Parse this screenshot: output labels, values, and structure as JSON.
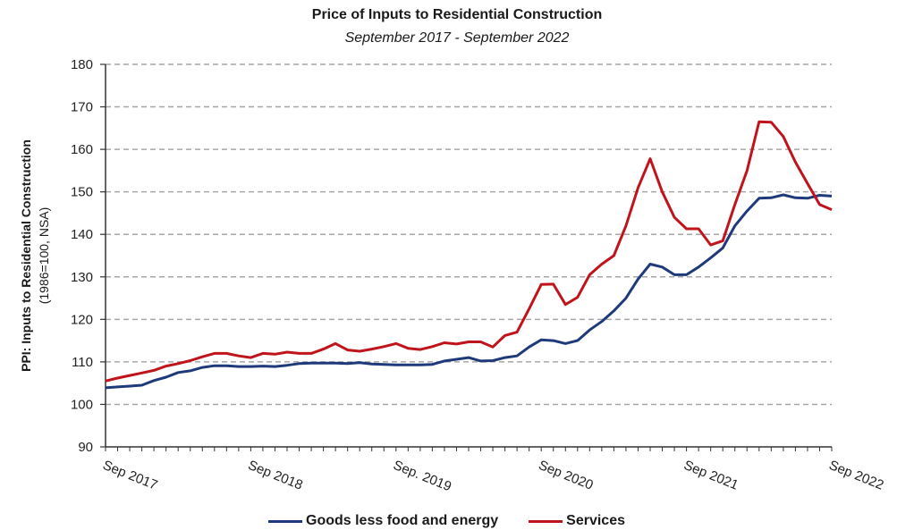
{
  "chart_data": {
    "type": "line",
    "title": "Price of Inputs to Residential Construction",
    "subtitle": "September 2017 - September 2022",
    "ylabel": "PPI: Inputs to Residential Construction",
    "ylabel_sub": "(1986=100, NSA)",
    "xlabel": "",
    "ylim": [
      90,
      180
    ],
    "yticks": [
      90,
      100,
      110,
      120,
      130,
      140,
      150,
      160,
      170,
      180
    ],
    "xtick_labels": [
      {
        "month_index": 0,
        "label": "Sep 2017"
      },
      {
        "month_index": 12,
        "label": "Sep 2018"
      },
      {
        "month_index": 24,
        "label": "Sep. 2019"
      },
      {
        "month_index": 36,
        "label": "Sep 2020"
      },
      {
        "month_index": 48,
        "label": "Sep 2021"
      },
      {
        "month_index": 60,
        "label": "Sep 2022"
      }
    ],
    "x_period": "monthly, Sep 2017 to Sep 2022",
    "grid": "horizontal dashed",
    "legend_position": "bottom",
    "series": [
      {
        "name": "Goods less food and energy",
        "color": "#1f3a7a",
        "values": [
          103.9,
          104.1,
          104.3,
          104.5,
          105.6,
          106.4,
          107.5,
          107.9,
          108.7,
          109.1,
          109.1,
          108.9,
          108.9,
          109.0,
          108.9,
          109.2,
          109.6,
          109.7,
          109.7,
          109.7,
          109.6,
          109.8,
          109.5,
          109.4,
          109.3,
          109.3,
          109.3,
          109.4,
          110.2,
          110.6,
          111.0,
          110.2,
          110.3,
          111.0,
          111.4,
          113.5,
          115.2,
          115.0,
          114.3,
          115.0,
          117.5,
          119.5,
          122.0,
          125.0,
          129.5,
          133.0,
          132.3,
          130.5,
          130.5,
          132.3,
          134.5,
          136.8,
          142.0,
          145.5,
          148.5,
          148.6,
          149.3,
          148.6,
          148.5,
          149.2,
          149.0
        ]
      },
      {
        "name": "Services",
        "color": "#c0141c",
        "values": [
          105.5,
          106.2,
          106.8,
          107.4,
          108.0,
          109.0,
          109.6,
          110.3,
          111.2,
          112.0,
          112.0,
          111.4,
          111.0,
          112.0,
          111.8,
          112.3,
          112.0,
          112.0,
          113.0,
          114.3,
          112.8,
          112.5,
          113.0,
          113.6,
          114.3,
          113.2,
          112.9,
          113.6,
          114.5,
          114.2,
          114.7,
          114.7,
          113.5,
          116.2,
          117.0,
          122.5,
          128.2,
          128.3,
          123.5,
          125.2,
          130.5,
          133.0,
          135.0,
          142.0,
          151.0,
          157.8,
          150.0,
          144.0,
          141.3,
          141.3,
          137.5,
          138.5,
          147.0,
          155.0,
          166.5,
          166.4,
          163.0,
          157.0,
          152.0,
          147.0,
          145.8
        ]
      }
    ]
  }
}
